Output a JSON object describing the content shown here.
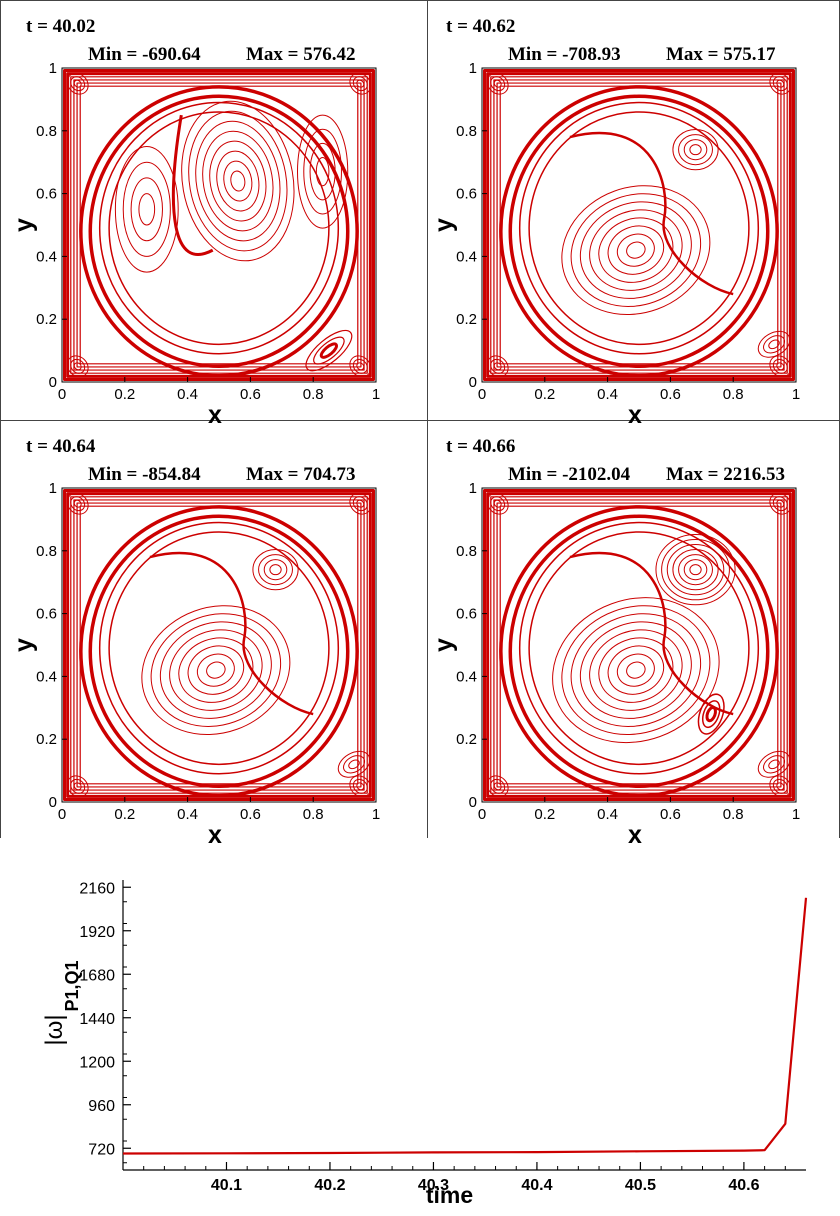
{
  "panels": [
    {
      "t_label": "t = 40.02",
      "min_label": "Min = -690.64",
      "max_label": "Max = 576.42"
    },
    {
      "t_label": "t = 40.62",
      "min_label": "Min = -708.93",
      "max_label": "Max = 575.17"
    },
    {
      "t_label": "t = 40.64",
      "min_label": "Min = -854.84",
      "max_label": "Max = 704.73"
    },
    {
      "t_label": "t = 40.66",
      "min_label": "Min = -2102.04",
      "max_label": "Max = 2216.53"
    }
  ],
  "contour_axes": {
    "xlabel": "x",
    "ylabel": "y",
    "xticks": [
      "0",
      "0.2",
      "0.4",
      "0.6",
      "0.8",
      "1"
    ],
    "yticks": [
      "0",
      "0.2",
      "0.4",
      "0.6",
      "0.8",
      "1"
    ]
  },
  "colors": {
    "contour": "#cc0000",
    "line": "#cc0000",
    "axis": "#000000"
  },
  "chart_data": {
    "type": "line",
    "xlabel": "time",
    "ylabel": "|ω|P1,Q1",
    "ylabel_main": "|ω|",
    "ylabel_sub": "P1,Q1",
    "xlim": [
      40.0,
      40.66
    ],
    "ylim": [
      600,
      2200
    ],
    "xticks": [
      40.1,
      40.2,
      40.3,
      40.4,
      40.5,
      40.6
    ],
    "xtick_labels": [
      "40.1",
      "40.2",
      "40.3",
      "40.4",
      "40.5",
      "40.6"
    ],
    "yticks": [
      720,
      960,
      1200,
      1440,
      1680,
      1920,
      2160
    ],
    "ytick_labels": [
      "720",
      "960",
      "1200",
      "1440",
      "1680",
      "1920",
      "2160"
    ],
    "series": [
      {
        "x": [
          40.0,
          40.1,
          40.2,
          40.3,
          40.4,
          40.5,
          40.6,
          40.62,
          40.64,
          40.66
        ],
        "y": [
          691,
          692,
          694,
          697,
          699,
          703,
          707,
          709,
          855,
          2102
        ]
      }
    ]
  }
}
